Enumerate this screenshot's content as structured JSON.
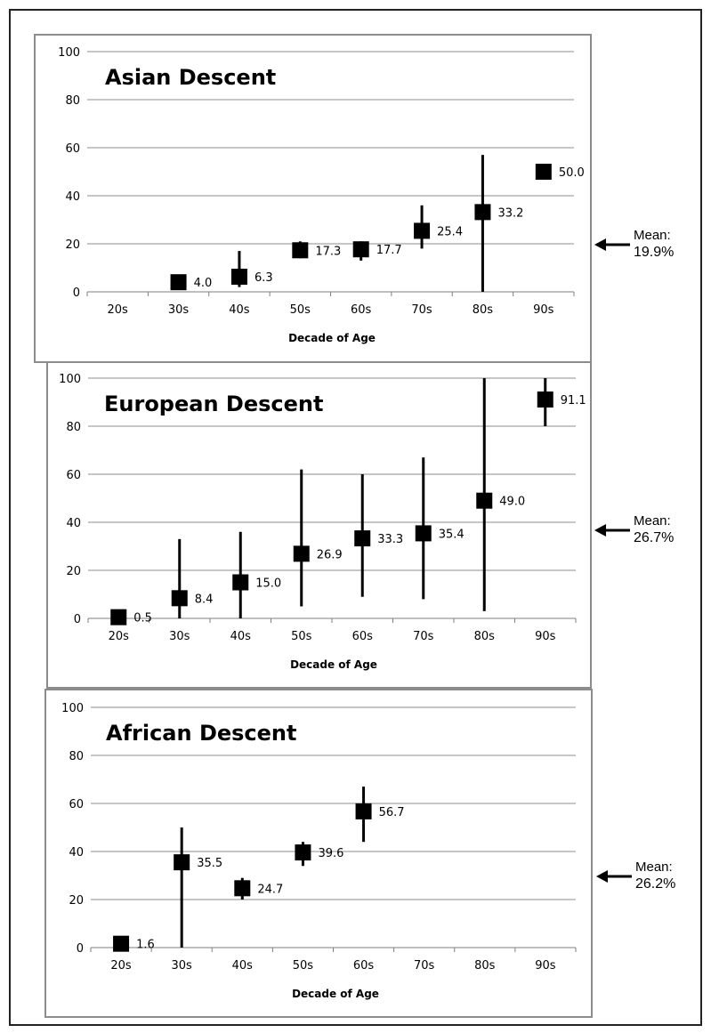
{
  "colors": {
    "marker": "#000000",
    "grid": "#8c8c8c",
    "axis": "#7f7f7f",
    "text": "#000000"
  },
  "icons": {
    "mean_arrow": "left-arrow-icon"
  },
  "chart_data": [
    {
      "type": "scatter",
      "title": "Asian Descent",
      "xlabel": "Decade of Age",
      "categories": [
        "20s",
        "30s",
        "40s",
        "50s",
        "60s",
        "70s",
        "80s",
        "90s"
      ],
      "ylim": [
        0,
        100
      ],
      "yticks": [
        "0",
        "20",
        "40",
        "60",
        "80",
        "100"
      ],
      "grid": true,
      "values": [
        null,
        4.0,
        6.3,
        17.3,
        17.7,
        25.4,
        33.2,
        50.0
      ],
      "labels": [
        "",
        "4.0",
        "6.3",
        "17.3",
        "17.7",
        "25.4",
        "33.2",
        "50.0"
      ],
      "error_low": [
        null,
        1,
        2,
        14,
        13,
        18,
        0,
        null
      ],
      "error_high": [
        null,
        7,
        17,
        21,
        21,
        36,
        57,
        null
      ],
      "mean": {
        "label": "Mean:",
        "value": "19.9%",
        "y": 20
      }
    },
    {
      "type": "scatter",
      "title": "European Descent",
      "xlabel": "Decade of Age",
      "categories": [
        "20s",
        "30s",
        "40s",
        "50s",
        "60s",
        "70s",
        "80s",
        "90s"
      ],
      "ylim": [
        0,
        100
      ],
      "yticks": [
        "0",
        "20",
        "40",
        "60",
        "80",
        "100"
      ],
      "grid": true,
      "values": [
        0.5,
        8.4,
        15.0,
        26.9,
        33.3,
        35.4,
        49.0,
        91.1
      ],
      "labels": [
        "0.5",
        "8.4",
        "15.0",
        "26.9",
        "33.3",
        "35.4",
        "49.0",
        "91.1"
      ],
      "error_low": [
        null,
        0,
        0,
        5,
        9,
        8,
        3,
        80
      ],
      "error_high": [
        null,
        33,
        36,
        62,
        60,
        67,
        100,
        100
      ],
      "mean": {
        "label": "Mean:",
        "value": "26.7%",
        "y": 40
      }
    },
    {
      "type": "scatter",
      "title": "African Descent",
      "xlabel": "Decade of Age",
      "categories": [
        "20s",
        "30s",
        "40s",
        "50s",
        "60s",
        "70s",
        "80s",
        "90s"
      ],
      "ylim": [
        0,
        100
      ],
      "yticks": [
        "0",
        "20",
        "40",
        "60",
        "80",
        "100"
      ],
      "grid": true,
      "values": [
        1.6,
        35.5,
        24.7,
        39.6,
        56.7,
        null,
        null,
        null
      ],
      "labels": [
        "1.6",
        "35.5",
        "24.7",
        "39.6",
        "56.7",
        "",
        "",
        ""
      ],
      "error_low": [
        null,
        0,
        20,
        34,
        44,
        null,
        null,
        null
      ],
      "error_high": [
        null,
        50,
        29,
        44,
        67,
        null,
        null,
        null
      ],
      "mean": {
        "label": "Mean:",
        "value": "26.2%",
        "y": 31
      }
    }
  ]
}
